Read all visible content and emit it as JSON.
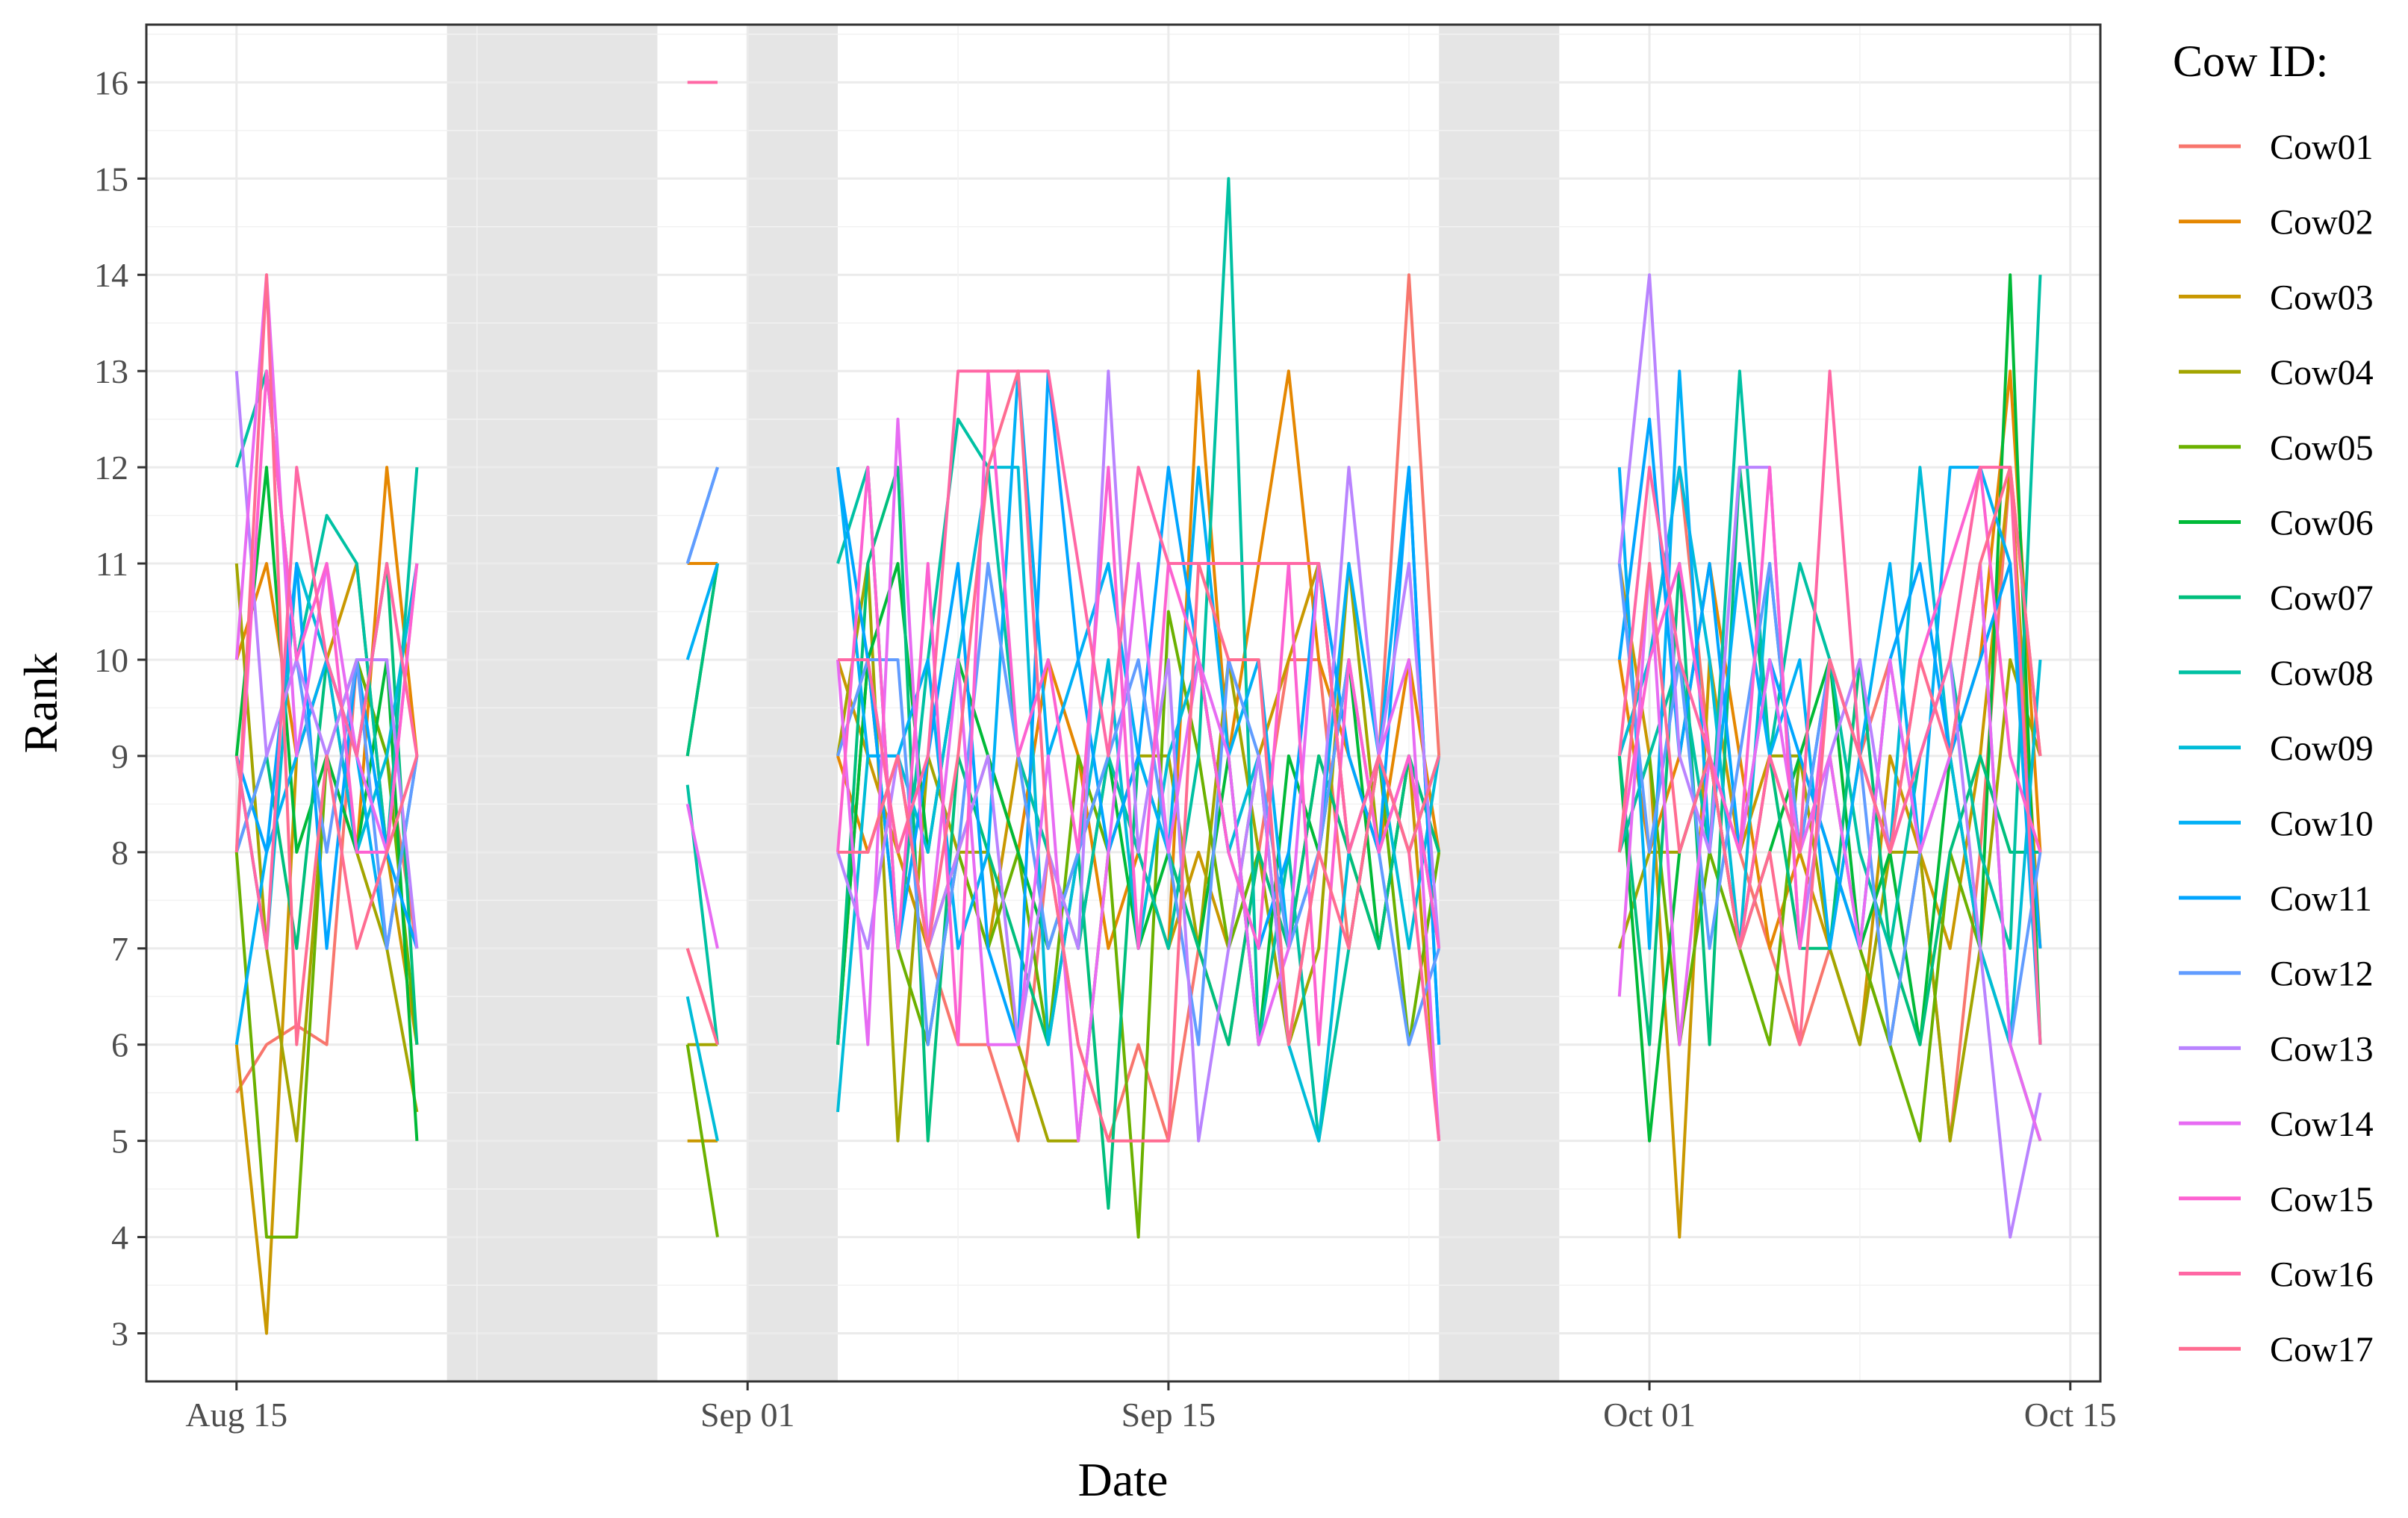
{
  "chart_data": {
    "type": "line",
    "title": "",
    "xlabel": "Date",
    "ylabel": "Rank",
    "x_tick_labels": [
      "Aug 15",
      "Sep 01",
      "Sep 15",
      "Oct 01",
      "Oct 15"
    ],
    "x_tick_dates": [
      "2023-08-15",
      "2023-09-01",
      "2023-09-15",
      "2023-10-01",
      "2023-10-15"
    ],
    "xlim": [
      "2023-08-12",
      "2023-10-16"
    ],
    "y_ticks": [
      3,
      4,
      5,
      6,
      7,
      8,
      9,
      10,
      11,
      12,
      13,
      14,
      15,
      16
    ],
    "ylim": [
      2.5,
      16.6
    ],
    "grid": true,
    "legend_title": "Cow ID:",
    "legend_position": "right",
    "shaded_periods": [
      [
        "2023-08-22",
        "2023-08-29"
      ],
      [
        "2023-09-01",
        "2023-09-04"
      ],
      [
        "2023-09-24",
        "2023-09-28"
      ]
    ],
    "dates": [
      "2023-08-15",
      "2023-08-16",
      "2023-08-17",
      "2023-08-18",
      "2023-08-19",
      "2023-08-20",
      "2023-08-21",
      "2023-08-22",
      "2023-08-23",
      "2023-08-24",
      "2023-08-25",
      "2023-08-26",
      "2023-08-27",
      "2023-08-28",
      "2023-08-29",
      "2023-08-30",
      "2023-08-31",
      "2023-09-01",
      "2023-09-02",
      "2023-09-03",
      "2023-09-04",
      "2023-09-05",
      "2023-09-06",
      "2023-09-07",
      "2023-09-08",
      "2023-09-09",
      "2023-09-10",
      "2023-09-11",
      "2023-09-12",
      "2023-09-13",
      "2023-09-14",
      "2023-09-15",
      "2023-09-16",
      "2023-09-17",
      "2023-09-18",
      "2023-09-19",
      "2023-09-20",
      "2023-09-21",
      "2023-09-22",
      "2023-09-23",
      "2023-09-24",
      "2023-09-25",
      "2023-09-26",
      "2023-09-27",
      "2023-09-28",
      "2023-09-29",
      "2023-09-30",
      "2023-10-01",
      "2023-10-02",
      "2023-10-03",
      "2023-10-04",
      "2023-10-05",
      "2023-10-06",
      "2023-10-07",
      "2023-10-08",
      "2023-10-09",
      "2023-10-10",
      "2023-10-11",
      "2023-10-12",
      "2023-10-13",
      "2023-10-14"
    ],
    "series": [
      {
        "name": "Cow01",
        "color": "#F8766D",
        "values": [
          5.5,
          6,
          6.2,
          6,
          10,
          9,
          7,
          null,
          null,
          null,
          null,
          null,
          null,
          null,
          null,
          7,
          6,
          null,
          null,
          null,
          9,
          10,
          8,
          7,
          6,
          6,
          5,
          8,
          6,
          5,
          6,
          5,
          7,
          6,
          8,
          10,
          10,
          7,
          9,
          14,
          9,
          null,
          null,
          null,
          null,
          null,
          9,
          10,
          12,
          9,
          8,
          7,
          6,
          7,
          9,
          10,
          8,
          5,
          8,
          12,
          9
        ]
      },
      {
        "name": "Cow02",
        "color": "#E58700",
        "values": [
          10,
          11,
          9,
          10,
          8,
          12,
          9,
          null,
          null,
          null,
          null,
          null,
          null,
          null,
          null,
          11,
          11,
          null,
          null,
          null,
          9,
          8,
          9,
          7,
          8,
          9,
          8,
          10,
          9,
          7,
          8,
          7,
          13,
          9,
          11,
          13,
          10,
          9,
          8,
          10,
          8,
          null,
          null,
          null,
          null,
          null,
          10,
          8,
          9,
          11,
          9,
          7,
          8,
          9,
          7,
          6,
          8,
          9,
          10,
          13,
          8
        ]
      },
      {
        "name": "Cow03",
        "color": "#C99800",
        "values": [
          6,
          3,
          9,
          10,
          11,
          8,
          6,
          null,
          null,
          null,
          null,
          null,
          null,
          null,
          null,
          5,
          5,
          null,
          null,
          null,
          10,
          9,
          8,
          7,
          8,
          7,
          9,
          8,
          7,
          9,
          8,
          7,
          8,
          7,
          9,
          10,
          11,
          8,
          7,
          9,
          5,
          null,
          null,
          null,
          null,
          null,
          11,
          9,
          4,
          10,
          8,
          9,
          8,
          7,
          6,
          9,
          8,
          7,
          9,
          12,
          7
        ]
      },
      {
        "name": "Cow04",
        "color": "#A3A500",
        "values": [
          11,
          7,
          5,
          9,
          8,
          7,
          5.3,
          null,
          null,
          null,
          null,
          null,
          null,
          null,
          null,
          6,
          6,
          null,
          null,
          null,
          9,
          11,
          5,
          9,
          8,
          8,
          6,
          5,
          5,
          8,
          9,
          9,
          7,
          10,
          8,
          6,
          7,
          11,
          8,
          9,
          7,
          null,
          null,
          null,
          null,
          null,
          7,
          8,
          8,
          9,
          7,
          9,
          9,
          7,
          6,
          8,
          8,
          5,
          7,
          10,
          9
        ]
      },
      {
        "name": "Cow05",
        "color": "#6BB100",
        "values": [
          8,
          4,
          4,
          9,
          10,
          9,
          6,
          null,
          null,
          null,
          null,
          null,
          null,
          null,
          null,
          6,
          4,
          null,
          null,
          null,
          6,
          10,
          7,
          6,
          8,
          7,
          8,
          6,
          9,
          8,
          4,
          10.5,
          9,
          7,
          8,
          7,
          9,
          8,
          9,
          6,
          8,
          null,
          null,
          null,
          null,
          null,
          8,
          9,
          6,
          8,
          7,
          6,
          9,
          8,
          7,
          6,
          5,
          8,
          7,
          6,
          5
        ]
      },
      {
        "name": "Cow06",
        "color": "#00BA38",
        "values": [
          9,
          12,
          8,
          9,
          8,
          10,
          5,
          null,
          null,
          null,
          null,
          null,
          null,
          null,
          null,
          9,
          11,
          null,
          null,
          null,
          6,
          10,
          11,
          8,
          10,
          9,
          8,
          7,
          8,
          9,
          7,
          8,
          7,
          9,
          6,
          9,
          8,
          10,
          7,
          9,
          8,
          null,
          null,
          null,
          null,
          null,
          9,
          5,
          8,
          9,
          7,
          8,
          9,
          10,
          7,
          8,
          6,
          9,
          7,
          14,
          6
        ]
      },
      {
        "name": "Cow07",
        "color": "#00BF7D",
        "values": [
          8,
          9,
          7,
          10,
          9,
          11,
          6,
          null,
          null,
          null,
          null,
          null,
          null,
          null,
          null,
          9,
          11,
          null,
          null,
          null,
          6,
          11,
          12,
          5,
          9,
          8,
          7,
          6,
          8,
          4.3,
          9,
          8,
          7,
          6,
          8,
          7,
          9,
          8,
          7,
          9,
          8,
          null,
          null,
          null,
          null,
          null,
          9,
          6,
          11,
          6,
          12,
          9,
          7,
          7,
          10,
          7,
          6,
          8,
          9,
          8,
          8
        ]
      },
      {
        "name": "Cow08",
        "color": "#00C1A3",
        "values": [
          12,
          13,
          10,
          11.5,
          11,
          8,
          12,
          null,
          null,
          null,
          null,
          null,
          null,
          null,
          null,
          8.7,
          6,
          null,
          null,
          null,
          11,
          12,
          7,
          10,
          12.5,
          12,
          9,
          8,
          7,
          9,
          8,
          7,
          9,
          15,
          6,
          8,
          5,
          7,
          9,
          8,
          9,
          null,
          null,
          null,
          null,
          null,
          8,
          9,
          10,
          8,
          13,
          9,
          11,
          10,
          8,
          7,
          9,
          10,
          8,
          7,
          14
        ]
      },
      {
        "name": "Cow09",
        "color": "#00BCD8",
        "values": [
          9,
          7,
          11,
          10,
          8,
          9,
          11,
          null,
          null,
          null,
          null,
          null,
          null,
          null,
          null,
          6.5,
          5,
          null,
          null,
          null,
          5.3,
          9,
          9,
          8,
          10,
          12,
          12,
          6,
          8,
          10,
          7,
          9,
          10,
          8,
          9,
          6,
          5,
          8,
          9,
          7,
          9,
          null,
          null,
          null,
          null,
          null,
          9,
          10,
          12,
          10,
          7,
          11,
          8,
          10,
          9,
          8,
          12,
          9,
          7,
          6,
          10
        ]
      },
      {
        "name": "Cow10",
        "color": "#00B0F6",
        "values": [
          6,
          8,
          9,
          10,
          9,
          7,
          9,
          null,
          null,
          null,
          null,
          null,
          null,
          null,
          null,
          10,
          11,
          null,
          null,
          null,
          12,
          9,
          9,
          10,
          7,
          8,
          13,
          9,
          10,
          11,
          9,
          8,
          12,
          9,
          10,
          7,
          8,
          11,
          9,
          12,
          6,
          null,
          null,
          null,
          null,
          null,
          12,
          7,
          13,
          8,
          11,
          9,
          10,
          7,
          9,
          11,
          8,
          12,
          12,
          11,
          6
        ]
      },
      {
        "name": "Cow11",
        "color": "#00A5FF",
        "values": [
          9,
          8,
          11,
          7,
          10,
          8,
          7,
          null,
          null,
          null,
          null,
          null,
          null,
          null,
          null,
          11,
          12,
          null,
          null,
          null,
          12,
          10,
          7,
          9,
          11,
          7,
          6,
          13,
          10,
          8,
          9,
          12,
          10,
          8,
          7,
          8,
          11,
          9,
          8,
          12,
          6,
          null,
          null,
          null,
          null,
          null,
          10,
          12.5,
          9,
          11,
          8,
          10,
          9,
          8,
          7,
          10,
          11,
          9,
          10,
          11,
          7
        ]
      },
      {
        "name": "Cow12",
        "color": "#619CFF",
        "values": [
          8,
          9,
          10,
          8,
          10,
          7,
          9,
          null,
          null,
          null,
          null,
          null,
          null,
          null,
          null,
          11,
          12,
          null,
          null,
          null,
          9,
          10,
          10,
          6,
          8,
          11,
          9,
          7,
          8,
          9,
          10,
          8,
          6,
          10,
          9,
          7,
          8,
          10,
          8,
          6,
          7,
          null,
          null,
          null,
          null,
          null,
          11,
          8,
          10,
          7,
          9,
          11,
          8,
          10,
          9,
          6,
          8,
          9,
          11,
          6,
          8
        ]
      },
      {
        "name": "Cow13",
        "color": "#B983FF",
        "values": [
          13,
          9,
          10,
          9,
          10,
          10,
          7,
          null,
          null,
          null,
          null,
          null,
          null,
          null,
          null,
          null,
          null,
          null,
          null,
          null,
          8,
          7,
          9,
          7,
          8,
          9,
          6,
          8,
          7,
          13,
          8,
          10,
          5,
          7,
          9,
          6,
          8,
          12,
          9,
          11,
          7,
          null,
          null,
          null,
          null,
          null,
          11,
          14,
          9,
          8,
          12,
          12,
          7,
          9,
          10,
          8,
          9,
          10,
          7,
          4,
          5.5
        ]
      },
      {
        "name": "Cow14",
        "color": "#E76BF3",
        "values": [
          10,
          14,
          9,
          11,
          9,
          8,
          11,
          null,
          null,
          null,
          null,
          null,
          null,
          null,
          null,
          8.5,
          7,
          null,
          null,
          null,
          10,
          6,
          12.5,
          7,
          10,
          6,
          6,
          9,
          5,
          8,
          11,
          8,
          10,
          9,
          6,
          7,
          11,
          8,
          9,
          10,
          5,
          null,
          null,
          null,
          null,
          null,
          6.5,
          11,
          6,
          9,
          8,
          10,
          8,
          9,
          7,
          10,
          8,
          9,
          11,
          6,
          5
        ]
      },
      {
        "name": "Cow15",
        "color": "#FD61D1",
        "values": [
          8,
          13,
          10,
          11,
          8,
          8,
          11,
          null,
          null,
          null,
          null,
          null,
          null,
          null,
          null,
          null,
          null,
          null,
          null,
          null,
          8,
          12,
          7,
          11,
          6,
          13,
          9,
          10,
          8,
          12,
          7,
          11,
          10,
          8,
          7,
          11,
          6,
          10,
          8,
          9,
          7,
          null,
          null,
          null,
          null,
          null,
          8,
          10,
          11,
          9,
          8,
          12,
          7,
          10,
          9,
          8,
          10,
          11,
          12,
          9,
          8
        ]
      },
      {
        "name": "Cow16",
        "color": "#FF67A4",
        "values": [
          9,
          7,
          12,
          10,
          9,
          11,
          9,
          null,
          null,
          null,
          null,
          null,
          null,
          null,
          null,
          16,
          16,
          null,
          null,
          null,
          10,
          10,
          8,
          9,
          13,
          13,
          13,
          13,
          11,
          9,
          12,
          11,
          11,
          11,
          11,
          11,
          11,
          8,
          9,
          8,
          5,
          null,
          null,
          null,
          null,
          null,
          9,
          12,
          10,
          9,
          7,
          9,
          8,
          13,
          9,
          8,
          9,
          10,
          12,
          12,
          6
        ]
      },
      {
        "name": "Cow17",
        "color": "#FF6C91",
        "values": [
          8,
          14,
          6,
          9,
          7,
          8,
          9,
          null,
          null,
          null,
          null,
          null,
          null,
          null,
          null,
          7,
          6,
          null,
          null,
          null,
          8,
          8,
          9,
          7,
          9,
          12,
          13,
          8,
          6,
          5,
          5,
          5,
          11,
          10,
          10,
          6,
          8,
          7,
          9,
          8,
          9,
          null,
          null,
          null,
          null,
          null,
          8,
          11,
          8,
          9,
          7,
          8,
          6,
          10,
          9,
          8,
          10,
          9,
          11,
          12,
          9
        ]
      }
    ]
  }
}
